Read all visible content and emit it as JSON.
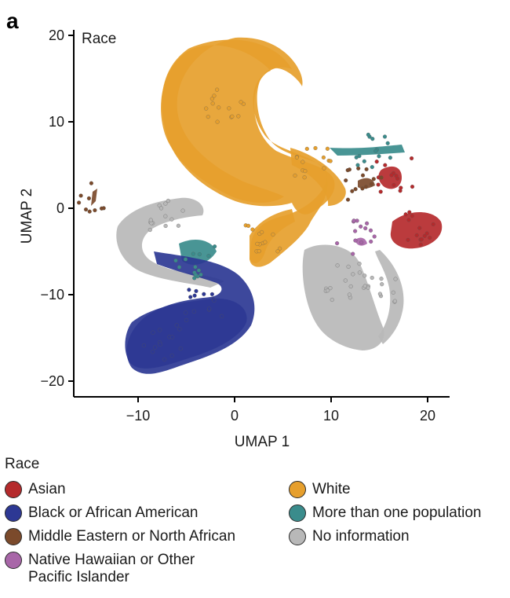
{
  "panel_label": "a",
  "chart_data": {
    "type": "scatter",
    "title": "Race",
    "xlabel": "UMAP 1",
    "ylabel": "UMAP 2",
    "xlim": [
      -17,
      22
    ],
    "ylim": [
      -22,
      21
    ],
    "xticks": [
      -10,
      0,
      10,
      20
    ],
    "yticks": [
      20,
      10,
      0,
      -10,
      -20
    ],
    "legend_title": "Race",
    "legend_position": "bottom",
    "series": [
      {
        "name": "Asian",
        "color": "#b52a2c",
        "centers": [
          [
            16.5,
            3.8
          ],
          [
            19.5,
            -2.5
          ]
        ]
      },
      {
        "name": "Black or African American",
        "color": "#2d3894",
        "centers": [
          [
            -7.5,
            -15.5
          ],
          [
            -3.0,
            -11.5
          ]
        ]
      },
      {
        "name": "Middle Eastern or North African",
        "color": "#7b4a2b",
        "centers": [
          [
            -15.0,
            1.5
          ],
          [
            13.5,
            2.8
          ]
        ]
      },
      {
        "name": "Native Hawaiian or Other Pacific Islander",
        "color": "#a866a8",
        "centers": [
          [
            12.5,
            -3.5
          ]
        ]
      },
      {
        "name": "White",
        "color": "#e69f2d",
        "centers": [
          [
            -1.0,
            12.0
          ],
          [
            3.0,
            -3.0
          ],
          [
            8.0,
            5.0
          ]
        ]
      },
      {
        "name": "More than one population",
        "color": "#3a8c8c",
        "centers": [
          [
            14.5,
            6.5
          ],
          [
            -4.0,
            -6.0
          ]
        ]
      },
      {
        "name": "No information",
        "color": "#b8b8b8",
        "centers": [
          [
            11.5,
            -8.5
          ],
          [
            -7.0,
            -1.0
          ],
          [
            15.5,
            -9.0
          ]
        ]
      }
    ]
  }
}
